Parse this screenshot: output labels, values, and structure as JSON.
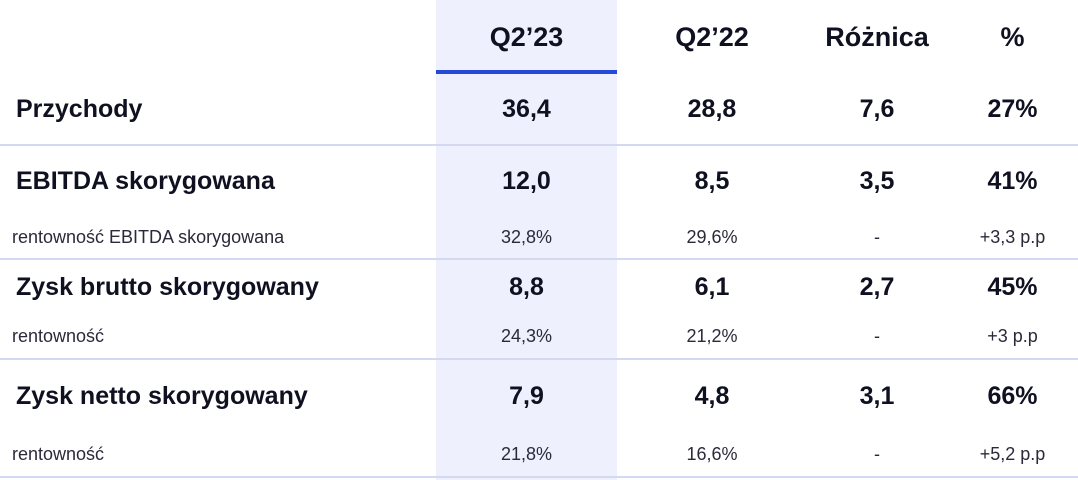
{
  "columns": {
    "c1": "Q2’23",
    "c2": "Q2’22",
    "c3": "Różnica",
    "c4": "%"
  },
  "rows": [
    {
      "label": "Przychody",
      "q2_23": "36,4",
      "q2_22": "28,8",
      "roznica": "7,6",
      "pct": "27%"
    },
    {
      "label": "EBITDA skorygowana",
      "q2_23": "12,0",
      "q2_22": "8,5",
      "roznica": "3,5",
      "pct": "41%"
    },
    {
      "label": "rentowność EBITDA skorygowana",
      "q2_23": "32,8%",
      "q2_22": "29,6%",
      "roznica": "-",
      "pct": "+3,3 p.p"
    },
    {
      "label": "Zysk brutto skorygowany",
      "q2_23": "8,8",
      "q2_22": "6,1",
      "roznica": "2,7",
      "pct": "45%"
    },
    {
      "label": "rentowność",
      "q2_23": "24,3%",
      "q2_22": "21,2%",
      "roznica": "-",
      "pct": "+3 p.p"
    },
    {
      "label": "Zysk netto skorygowany",
      "q2_23": "7,9",
      "q2_22": "4,8",
      "roznica": "3,1",
      "pct": "66%"
    },
    {
      "label": "rentowność",
      "q2_23": "21,8%",
      "q2_22": "16,6%",
      "roznica": "-",
      "pct": "+5,2 p.p"
    }
  ],
  "colors": {
    "highlight_column": "#eef0fd",
    "header_underline": "#2548d9",
    "divider": "#d4d8f0"
  }
}
